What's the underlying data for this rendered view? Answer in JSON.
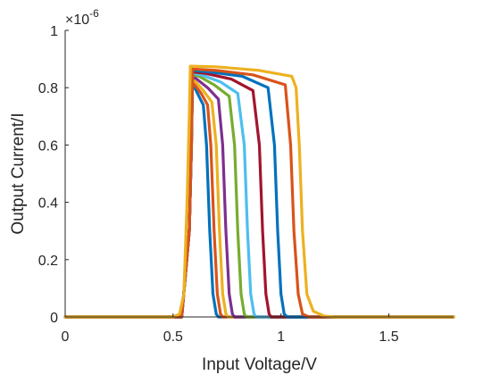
{
  "chart_data": {
    "type": "line",
    "xlabel": "Input Voltage/V",
    "ylabel": "Output Current/I",
    "y_exponent": "×10^-6",
    "y_exponent_parts": {
      "base": "×10",
      "power": "-6"
    },
    "xlim": [
      0,
      1.8
    ],
    "ylim": [
      0,
      1
    ],
    "x_ticks": [
      0,
      0.5,
      1,
      1.5
    ],
    "x_tick_labels": [
      "0",
      "0.5",
      "1",
      "1.5"
    ],
    "y_ticks": [
      0,
      0.2,
      0.4,
      0.6,
      0.8,
      1
    ],
    "y_tick_labels": [
      "0",
      "0.2",
      "0.4",
      "0.6",
      "0.8",
      "1"
    ],
    "grid": false,
    "series": [
      {
        "color": "#0072BD",
        "points": [
          [
            0,
            0
          ],
          [
            0.54,
            0
          ],
          [
            0.575,
            0.3
          ],
          [
            0.585,
            0.6
          ],
          [
            0.59,
            0.82
          ],
          [
            0.6,
            0.8
          ],
          [
            0.62,
            0.77
          ],
          [
            0.64,
            0.74
          ],
          [
            0.655,
            0.6
          ],
          [
            0.67,
            0.3
          ],
          [
            0.685,
            0.08
          ],
          [
            0.7,
            0.01
          ],
          [
            0.71,
            0
          ],
          [
            1.8,
            0
          ]
        ]
      },
      {
        "color": "#D95319",
        "points": [
          [
            0,
            0
          ],
          [
            0.54,
            0
          ],
          [
            0.575,
            0.3
          ],
          [
            0.585,
            0.6
          ],
          [
            0.59,
            0.83
          ],
          [
            0.6,
            0.81
          ],
          [
            0.63,
            0.78
          ],
          [
            0.66,
            0.74
          ],
          [
            0.675,
            0.6
          ],
          [
            0.69,
            0.3
          ],
          [
            0.705,
            0.08
          ],
          [
            0.72,
            0.01
          ],
          [
            0.73,
            0
          ],
          [
            1.8,
            0
          ]
        ]
      },
      {
        "color": "#EDB120",
        "points": [
          [
            0,
            0
          ],
          [
            0.54,
            0
          ],
          [
            0.575,
            0.3
          ],
          [
            0.585,
            0.6
          ],
          [
            0.59,
            0.83
          ],
          [
            0.605,
            0.82
          ],
          [
            0.64,
            0.79
          ],
          [
            0.68,
            0.75
          ],
          [
            0.7,
            0.6
          ],
          [
            0.715,
            0.3
          ],
          [
            0.73,
            0.08
          ],
          [
            0.745,
            0.01
          ],
          [
            0.755,
            0
          ],
          [
            1.8,
            0
          ]
        ]
      },
      {
        "color": "#7E2F8E",
        "points": [
          [
            0,
            0
          ],
          [
            0.54,
            0
          ],
          [
            0.575,
            0.3
          ],
          [
            0.585,
            0.6
          ],
          [
            0.59,
            0.84
          ],
          [
            0.61,
            0.83
          ],
          [
            0.66,
            0.8
          ],
          [
            0.71,
            0.76
          ],
          [
            0.73,
            0.6
          ],
          [
            0.745,
            0.3
          ],
          [
            0.76,
            0.08
          ],
          [
            0.775,
            0.01
          ],
          [
            0.785,
            0
          ],
          [
            1.8,
            0
          ]
        ]
      },
      {
        "color": "#77AC30",
        "points": [
          [
            0,
            0
          ],
          [
            0.54,
            0
          ],
          [
            0.575,
            0.3
          ],
          [
            0.585,
            0.6
          ],
          [
            0.59,
            0.845
          ],
          [
            0.62,
            0.84
          ],
          [
            0.69,
            0.81
          ],
          [
            0.76,
            0.77
          ],
          [
            0.785,
            0.6
          ],
          [
            0.8,
            0.3
          ],
          [
            0.815,
            0.08
          ],
          [
            0.83,
            0.01
          ],
          [
            0.84,
            0
          ],
          [
            1.8,
            0
          ]
        ]
      },
      {
        "color": "#4DBEEE",
        "points": [
          [
            0,
            0
          ],
          [
            0.54,
            0
          ],
          [
            0.575,
            0.3
          ],
          [
            0.585,
            0.6
          ],
          [
            0.59,
            0.85
          ],
          [
            0.63,
            0.845
          ],
          [
            0.72,
            0.82
          ],
          [
            0.8,
            0.78
          ],
          [
            0.83,
            0.6
          ],
          [
            0.845,
            0.3
          ],
          [
            0.86,
            0.08
          ],
          [
            0.875,
            0.01
          ],
          [
            0.885,
            0
          ],
          [
            1.8,
            0
          ]
        ]
      },
      {
        "color": "#A2142F",
        "points": [
          [
            0,
            0
          ],
          [
            0.54,
            0
          ],
          [
            0.575,
            0.3
          ],
          [
            0.585,
            0.6
          ],
          [
            0.59,
            0.855
          ],
          [
            0.65,
            0.85
          ],
          [
            0.77,
            0.83
          ],
          [
            0.87,
            0.79
          ],
          [
            0.9,
            0.6
          ],
          [
            0.915,
            0.3
          ],
          [
            0.93,
            0.08
          ],
          [
            0.945,
            0.01
          ],
          [
            0.955,
            0
          ],
          [
            1.8,
            0
          ]
        ]
      },
      {
        "color": "#0072BD",
        "points": [
          [
            0,
            0
          ],
          [
            0.54,
            0
          ],
          [
            0.575,
            0.3
          ],
          [
            0.585,
            0.6
          ],
          [
            0.59,
            0.86
          ],
          [
            0.67,
            0.855
          ],
          [
            0.82,
            0.84
          ],
          [
            0.94,
            0.8
          ],
          [
            0.97,
            0.6
          ],
          [
            0.985,
            0.3
          ],
          [
            1,
            0.08
          ],
          [
            1.015,
            0.01
          ],
          [
            1.03,
            0
          ],
          [
            1.8,
            0
          ]
        ]
      },
      {
        "color": "#D95319",
        "points": [
          [
            0,
            0
          ],
          [
            0.54,
            0
          ],
          [
            0.575,
            0.3
          ],
          [
            0.585,
            0.6
          ],
          [
            0.59,
            0.865
          ],
          [
            0.7,
            0.86
          ],
          [
            0.87,
            0.845
          ],
          [
            1.02,
            0.81
          ],
          [
            1.045,
            0.6
          ],
          [
            1.06,
            0.3
          ],
          [
            1.08,
            0.08
          ],
          [
            1.1,
            0.01
          ],
          [
            1.13,
            0
          ],
          [
            1.8,
            0
          ]
        ]
      },
      {
        "color": "#EDB120",
        "points": [
          [
            0,
            0
          ],
          [
            0.5,
            0
          ],
          [
            0.53,
            0.01
          ],
          [
            0.55,
            0.08
          ],
          [
            0.565,
            0.4
          ],
          [
            0.575,
            0.7
          ],
          [
            0.58,
            0.875
          ],
          [
            0.7,
            0.873
          ],
          [
            0.9,
            0.86
          ],
          [
            1.05,
            0.84
          ],
          [
            1.07,
            0.8
          ],
          [
            1.085,
            0.6
          ],
          [
            1.1,
            0.3
          ],
          [
            1.12,
            0.08
          ],
          [
            1.15,
            0.02
          ],
          [
            1.2,
            0.003
          ],
          [
            1.25,
            0
          ],
          [
            1.8,
            0
          ]
        ]
      }
    ]
  }
}
